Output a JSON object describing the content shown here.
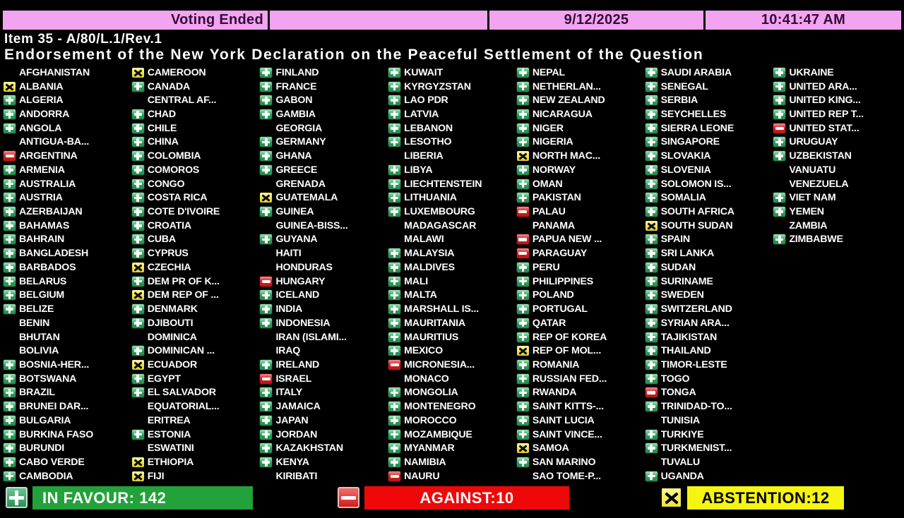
{
  "header": {
    "status": "Voting Ended",
    "date": "9/12/2025",
    "time": "10:41:47 AM"
  },
  "agenda": {
    "item": "Item 35 - A/80/L.1/Rev.1",
    "title": "Endorsement of the New York Declaration on the Peaceful Settlement of the Question"
  },
  "vote_board": {
    "legend": {
      "Y": "in-favour",
      "N": "against",
      "A": "abstention",
      "": "not-voting"
    },
    "columns": [
      [
        [
          "AFGHANISTAN",
          ""
        ],
        [
          "ALBANIA",
          "A"
        ],
        [
          "ALGERIA",
          "Y"
        ],
        [
          "ANDORRA",
          "Y"
        ],
        [
          "ANGOLA",
          "Y"
        ],
        [
          "ANTIGUA-BA...",
          ""
        ],
        [
          "ARGENTINA",
          "N"
        ],
        [
          "ARMENIA",
          "Y"
        ],
        [
          "AUSTRALIA",
          "Y"
        ],
        [
          "AUSTRIA",
          "Y"
        ],
        [
          "AZERBAIJAN",
          "Y"
        ],
        [
          "BAHAMAS",
          "Y"
        ],
        [
          "BAHRAIN",
          "Y"
        ],
        [
          "BANGLADESH",
          "Y"
        ],
        [
          "BARBADOS",
          "Y"
        ],
        [
          "BELARUS",
          "Y"
        ],
        [
          "BELGIUM",
          "Y"
        ],
        [
          "BELIZE",
          "Y"
        ],
        [
          "BENIN",
          ""
        ],
        [
          "BHUTAN",
          ""
        ],
        [
          "BOLIVIA",
          ""
        ],
        [
          "BOSNIA-HER...",
          "Y"
        ],
        [
          "BOTSWANA",
          "Y"
        ],
        [
          "BRAZIL",
          "Y"
        ],
        [
          "BRUNEI DAR...",
          "Y"
        ],
        [
          "BULGARIA",
          "Y"
        ],
        [
          "BURKINA FASO",
          "Y"
        ],
        [
          "BURUNDI",
          "Y"
        ],
        [
          "CABO VERDE",
          "Y"
        ],
        [
          "CAMBODIA",
          "Y"
        ]
      ],
      [
        [
          "CAMEROON",
          "A"
        ],
        [
          "CANADA",
          "Y"
        ],
        [
          "CENTRAL AF...",
          ""
        ],
        [
          "CHAD",
          "Y"
        ],
        [
          "CHILE",
          "Y"
        ],
        [
          "CHINA",
          "Y"
        ],
        [
          "COLOMBIA",
          "Y"
        ],
        [
          "COMOROS",
          "Y"
        ],
        [
          "CONGO",
          "Y"
        ],
        [
          "COSTA RICA",
          "Y"
        ],
        [
          "COTE D'IVOIRE",
          "Y"
        ],
        [
          "CROATIA",
          "Y"
        ],
        [
          "CUBA",
          "Y"
        ],
        [
          "CYPRUS",
          "Y"
        ],
        [
          "CZECHIA",
          "A"
        ],
        [
          "DEM PR OF K...",
          "Y"
        ],
        [
          "DEM REP OF ...",
          "A"
        ],
        [
          "DENMARK",
          "Y"
        ],
        [
          "DJIBOUTI",
          "Y"
        ],
        [
          "DOMINICA",
          ""
        ],
        [
          "DOMINICAN ...",
          "Y"
        ],
        [
          "ECUADOR",
          "A"
        ],
        [
          "EGYPT",
          "Y"
        ],
        [
          "EL SALVADOR",
          "Y"
        ],
        [
          "EQUATORIAL...",
          ""
        ],
        [
          "ERITREA",
          ""
        ],
        [
          "ESTONIA",
          "Y"
        ],
        [
          "ESWATINI",
          ""
        ],
        [
          "ETHIOPIA",
          "A"
        ],
        [
          "FIJI",
          "A"
        ]
      ],
      [
        [
          "FINLAND",
          "Y"
        ],
        [
          "FRANCE",
          "Y"
        ],
        [
          "GABON",
          "Y"
        ],
        [
          "GAMBIA",
          "Y"
        ],
        [
          "GEORGIA",
          ""
        ],
        [
          "GERMANY",
          "Y"
        ],
        [
          "GHANA",
          "Y"
        ],
        [
          "GREECE",
          "Y"
        ],
        [
          "GRENADA",
          ""
        ],
        [
          "GUATEMALA",
          "A"
        ],
        [
          "GUINEA",
          "Y"
        ],
        [
          "GUINEA-BISS...",
          ""
        ],
        [
          "GUYANA",
          "Y"
        ],
        [
          "HAITI",
          ""
        ],
        [
          "HONDURAS",
          ""
        ],
        [
          "HUNGARY",
          "N"
        ],
        [
          "ICELAND",
          "Y"
        ],
        [
          "INDIA",
          "Y"
        ],
        [
          "INDONESIA",
          "Y"
        ],
        [
          "IRAN (ISLAMI...",
          ""
        ],
        [
          "IRAQ",
          ""
        ],
        [
          "IRELAND",
          "Y"
        ],
        [
          "ISRAEL",
          "N"
        ],
        [
          "ITALY",
          "Y"
        ],
        [
          "JAMAICA",
          "Y"
        ],
        [
          "JAPAN",
          "Y"
        ],
        [
          "JORDAN",
          "Y"
        ],
        [
          "KAZAKHSTAN",
          "Y"
        ],
        [
          "KENYA",
          "Y"
        ],
        [
          "KIRIBATI",
          ""
        ]
      ],
      [
        [
          "KUWAIT",
          "Y"
        ],
        [
          "KYRGYZSTAN",
          "Y"
        ],
        [
          "LAO PDR",
          "Y"
        ],
        [
          "LATVIA",
          "Y"
        ],
        [
          "LEBANON",
          "Y"
        ],
        [
          "LESOTHO",
          "Y"
        ],
        [
          "LIBERIA",
          ""
        ],
        [
          "LIBYA",
          "Y"
        ],
        [
          "LIECHTENSTEIN",
          "Y"
        ],
        [
          "LITHUANIA",
          "Y"
        ],
        [
          "LUXEMBOURG",
          "Y"
        ],
        [
          "MADAGASCAR",
          ""
        ],
        [
          "MALAWI",
          ""
        ],
        [
          "MALAYSIA",
          "Y"
        ],
        [
          "MALDIVES",
          "Y"
        ],
        [
          "MALI",
          "Y"
        ],
        [
          "MALTA",
          "Y"
        ],
        [
          "MARSHALL IS...",
          "Y"
        ],
        [
          "MAURITANIA",
          "Y"
        ],
        [
          "MAURITIUS",
          "Y"
        ],
        [
          "MEXICO",
          "Y"
        ],
        [
          "MICRONESIA...",
          "N"
        ],
        [
          "MONACO",
          ""
        ],
        [
          "MONGOLIA",
          "Y"
        ],
        [
          "MONTENEGRO",
          "Y"
        ],
        [
          "MOROCCO",
          "Y"
        ],
        [
          "MOZAMBIQUE",
          "Y"
        ],
        [
          "MYANMAR",
          "Y"
        ],
        [
          "NAMIBIA",
          "Y"
        ],
        [
          "NAURU",
          "N"
        ]
      ],
      [
        [
          "NEPAL",
          "Y"
        ],
        [
          "NETHERLAN...",
          "Y"
        ],
        [
          "NEW ZEALAND",
          "Y"
        ],
        [
          "NICARAGUA",
          "Y"
        ],
        [
          "NIGER",
          "Y"
        ],
        [
          "NIGERIA",
          "Y"
        ],
        [
          "NORTH MAC...",
          "A"
        ],
        [
          "NORWAY",
          "Y"
        ],
        [
          "OMAN",
          "Y"
        ],
        [
          "PAKISTAN",
          "Y"
        ],
        [
          "PALAU",
          "N"
        ],
        [
          "PANAMA",
          ""
        ],
        [
          "PAPUA NEW ...",
          "N"
        ],
        [
          "PARAGUAY",
          "N"
        ],
        [
          "PERU",
          "Y"
        ],
        [
          "PHILIPPINES",
          "Y"
        ],
        [
          "POLAND",
          "Y"
        ],
        [
          "PORTUGAL",
          "Y"
        ],
        [
          "QATAR",
          "Y"
        ],
        [
          "REP OF KOREA",
          "Y"
        ],
        [
          "REP OF MOL...",
          "A"
        ],
        [
          "ROMANIA",
          "Y"
        ],
        [
          "RUSSIAN FED...",
          "Y"
        ],
        [
          "RWANDA",
          "Y"
        ],
        [
          "SAINT KITTS-...",
          "Y"
        ],
        [
          "SAINT LUCIA",
          "Y"
        ],
        [
          "SAINT VINCE...",
          "Y"
        ],
        [
          "SAMOA",
          "A"
        ],
        [
          "SAN MARINO",
          "Y"
        ],
        [
          "SAO TOME-P...",
          ""
        ]
      ],
      [
        [
          "SAUDI ARABIA",
          "Y"
        ],
        [
          "SENEGAL",
          "Y"
        ],
        [
          "SERBIA",
          "Y"
        ],
        [
          "SEYCHELLES",
          "Y"
        ],
        [
          "SIERRA LEONE",
          "Y"
        ],
        [
          "SINGAPORE",
          "Y"
        ],
        [
          "SLOVAKIA",
          "Y"
        ],
        [
          "SLOVENIA",
          "Y"
        ],
        [
          "SOLOMON IS...",
          "Y"
        ],
        [
          "SOMALIA",
          "Y"
        ],
        [
          "SOUTH AFRICA",
          "Y"
        ],
        [
          "SOUTH SUDAN",
          "A"
        ],
        [
          "SPAIN",
          "Y"
        ],
        [
          "SRI LANKA",
          "Y"
        ],
        [
          "SUDAN",
          "Y"
        ],
        [
          "SURINAME",
          "Y"
        ],
        [
          "SWEDEN",
          "Y"
        ],
        [
          "SWITZERLAND",
          "Y"
        ],
        [
          "SYRIAN ARA...",
          "Y"
        ],
        [
          "TAJIKISTAN",
          "Y"
        ],
        [
          "THAILAND",
          "Y"
        ],
        [
          "TIMOR-LESTE",
          "Y"
        ],
        [
          "TOGO",
          "Y"
        ],
        [
          "TONGA",
          "N"
        ],
        [
          "TRINIDAD-TO...",
          "Y"
        ],
        [
          "TUNISIA",
          ""
        ],
        [
          "TURKIYE",
          "Y"
        ],
        [
          "TURKMENIST...",
          "Y"
        ],
        [
          "TUVALU",
          ""
        ],
        [
          "UGANDA",
          "Y"
        ]
      ],
      [
        [
          "UKRAINE",
          "Y"
        ],
        [
          "UNITED ARA...",
          "Y"
        ],
        [
          "UNITED KING...",
          "Y"
        ],
        [
          "UNITED REP T...",
          "Y"
        ],
        [
          "UNITED STAT...",
          "N"
        ],
        [
          "URUGUAY",
          "Y"
        ],
        [
          "UZBEKISTAN",
          "Y"
        ],
        [
          "VANUATU",
          ""
        ],
        [
          "VENEZUELA",
          ""
        ],
        [
          "VIET NAM",
          "Y"
        ],
        [
          "YEMEN",
          "Y"
        ],
        [
          "ZAMBIA",
          ""
        ],
        [
          "ZIMBABWE",
          "Y"
        ]
      ]
    ]
  },
  "summary": {
    "in_favour": {
      "label": "IN FAVOUR: 142",
      "count": 142
    },
    "against": {
      "label": "AGAINST:10",
      "count": 10
    },
    "abstention": {
      "label": "ABSTENTION:12",
      "count": 12
    }
  },
  "colors": {
    "background": "#000000",
    "banner_pink": "#f3a4f0",
    "banner_text": "#330a3a",
    "in_favour_green": "#2f9e5c",
    "against_red": "#d42222",
    "abstention_yellow": "#efe242",
    "summary_green": "#23a13a",
    "summary_red": "#ee0808",
    "summary_yellow": "#f6f411",
    "country_text": "#ffffff"
  }
}
